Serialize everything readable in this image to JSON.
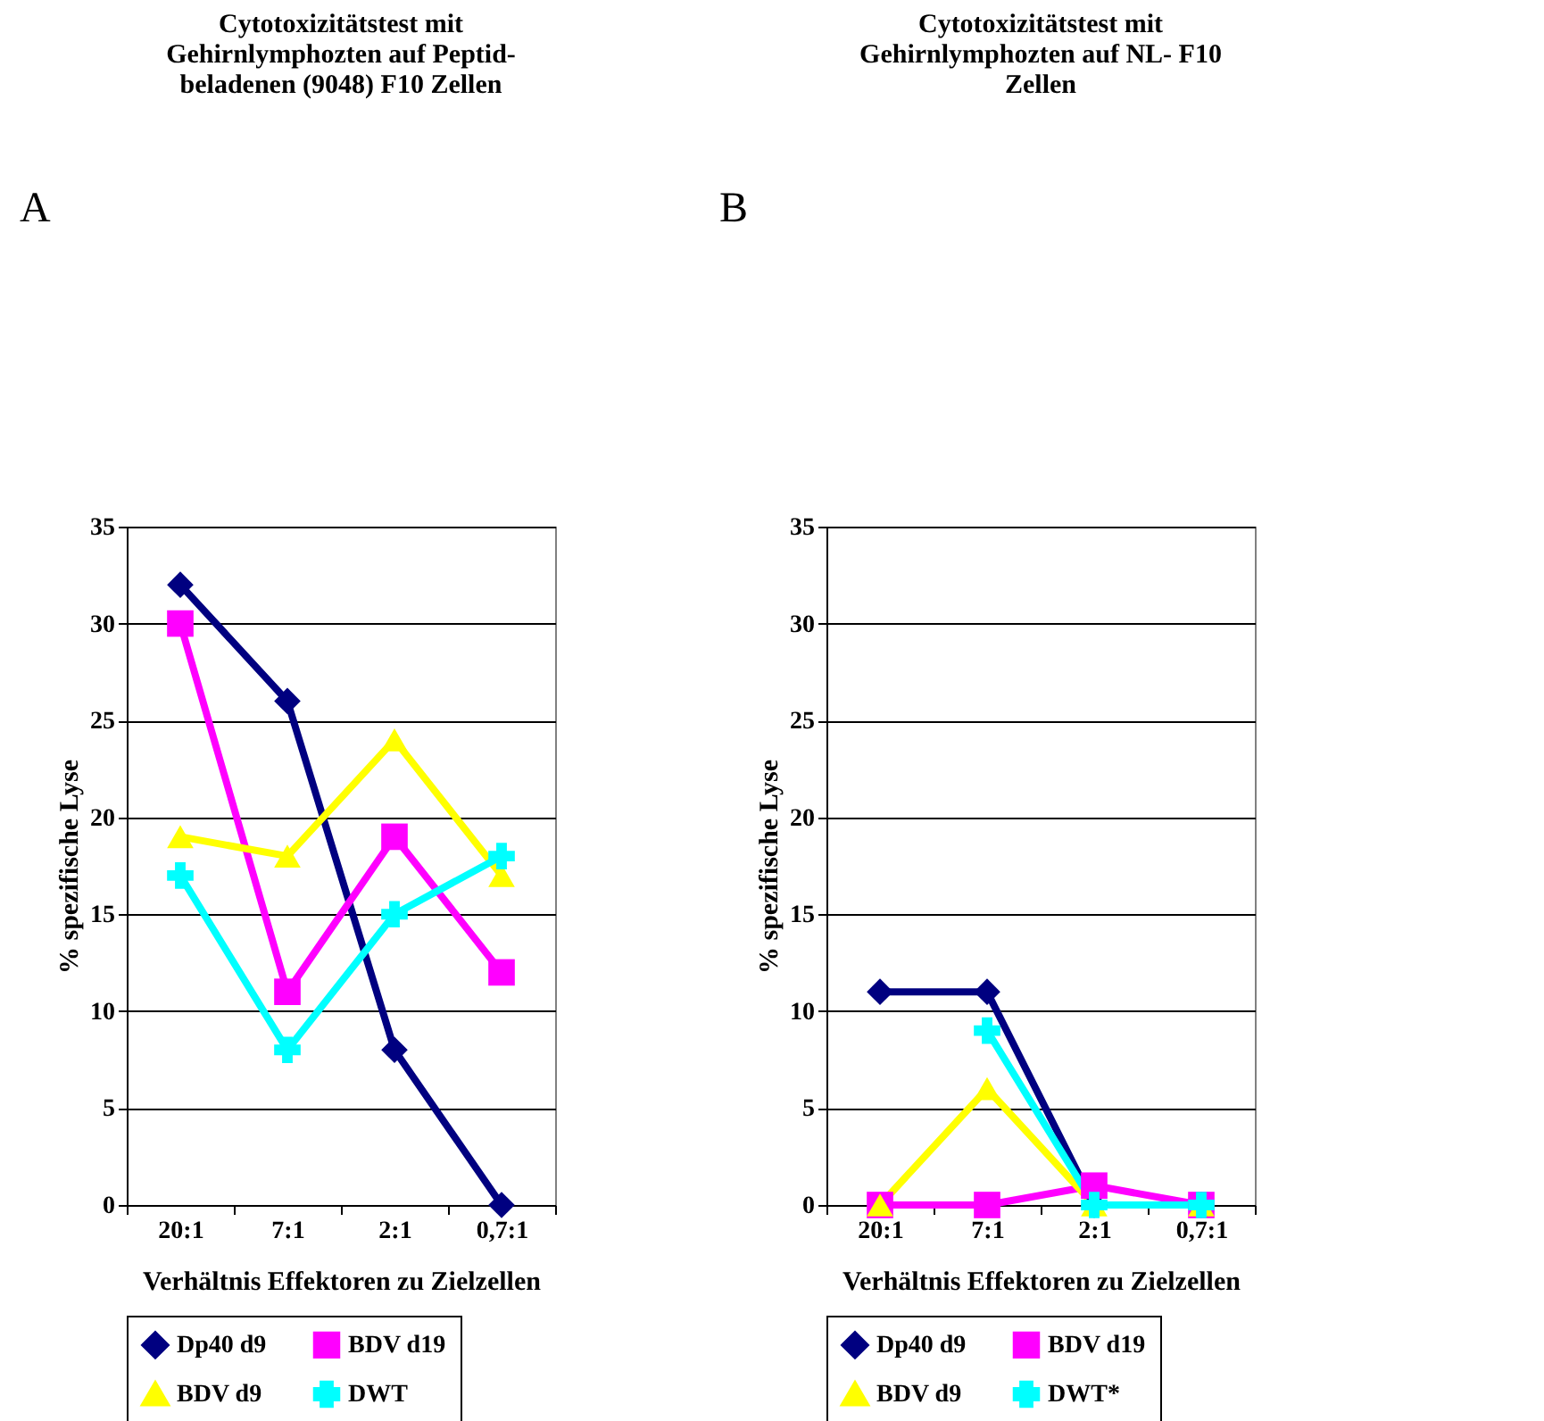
{
  "chart_data": [
    {
      "type": "line",
      "title": "Cytotoxizitätstest mit\nGehirnlymphozten auf Peptid-\nbeladenen (9048) F10 Zellen",
      "annotations": [
        "A"
      ],
      "xlabel": "Verhältnis Effektoren zu Zielzellen",
      "ylabel": "% spezifische Lyse",
      "categories": [
        "20:1",
        "7:1",
        "2:1",
        "0,7:1"
      ],
      "ylim": [
        0,
        35
      ],
      "yticks": [
        0,
        5,
        10,
        15,
        20,
        25,
        30,
        35
      ],
      "grid": "y",
      "legend": "bottom",
      "series": [
        {
          "name": "Dp40 d9",
          "color": "#000080",
          "marker": "diamond",
          "values": [
            32,
            26,
            8,
            0
          ]
        },
        {
          "name": "BDV d19",
          "color": "#ff00ff",
          "marker": "square",
          "values": [
            30,
            11,
            19,
            12
          ]
        },
        {
          "name": "BDV d9",
          "color": "#ffff00",
          "marker": "triangle",
          "values": [
            19,
            18,
            24,
            17
          ]
        },
        {
          "name": "DWT",
          "color": "#00ffff",
          "marker": "cross",
          "values": [
            17,
            8,
            15,
            18
          ]
        }
      ]
    },
    {
      "type": "line",
      "title": "Cytotoxizitätstest mit\nGehirnlymphozten auf NL- F10\nZellen",
      "annotations": [
        "B"
      ],
      "xlabel": "Verhältnis Effektoren zu Zielzellen",
      "ylabel": "% spezifische Lyse",
      "categories": [
        "20:1",
        "7:1",
        "2:1",
        "0,7:1"
      ],
      "ylim": [
        0,
        35
      ],
      "yticks": [
        0,
        5,
        10,
        15,
        20,
        25,
        30,
        35
      ],
      "grid": "y",
      "legend": "bottom",
      "series": [
        {
          "name": "Dp40 d9",
          "color": "#000080",
          "marker": "diamond",
          "values": [
            11,
            11,
            0,
            0
          ]
        },
        {
          "name": "BDV d19",
          "color": "#ff00ff",
          "marker": "square",
          "values": [
            0,
            0,
            1,
            0
          ]
        },
        {
          "name": "BDV d9",
          "color": "#ffff00",
          "marker": "triangle",
          "values": [
            0,
            6,
            0,
            0
          ]
        },
        {
          "name": "DWT*",
          "color": "#00ffff",
          "marker": "cross",
          "values": [
            null,
            9,
            0,
            0
          ]
        }
      ]
    }
  ]
}
